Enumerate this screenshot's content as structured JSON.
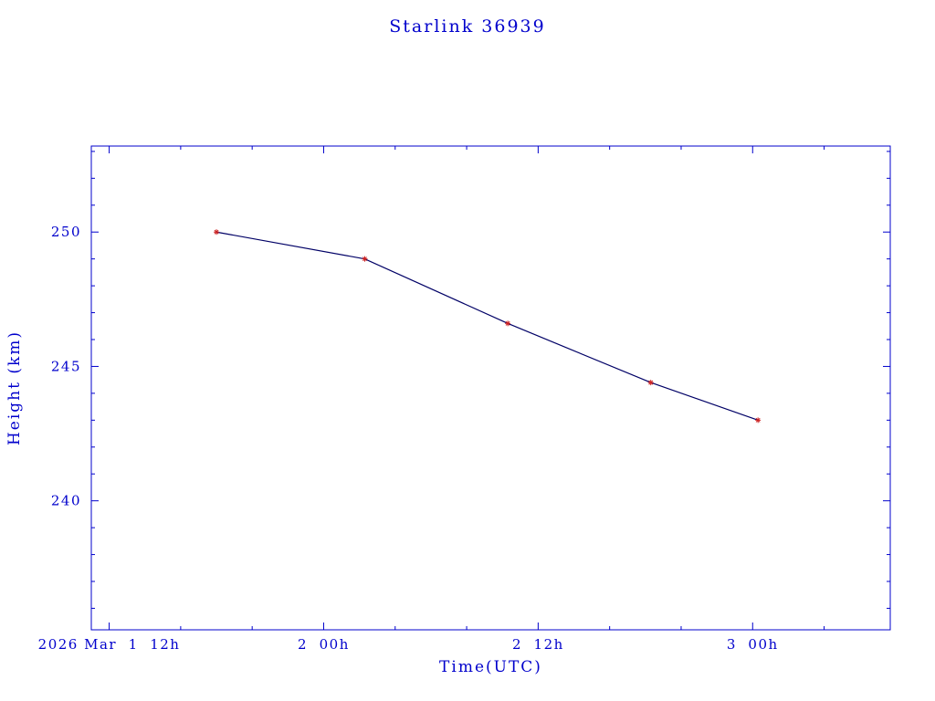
{
  "chart_data": {
    "type": "line",
    "title": "Starlink 36939",
    "xlabel": "Time(UTC)",
    "ylabel": "Height (km)",
    "x_unit": "hours since 2026 Mar 1 00:00 UTC",
    "xlim": [
      11,
      55.7
    ],
    "ylim": [
      235.2,
      253.2
    ],
    "x": [
      18.0,
      26.3,
      34.3,
      42.3,
      48.3
    ],
    "y": [
      250.0,
      249.0,
      246.6,
      244.4,
      243.0
    ],
    "series": [
      {
        "name": "Height (km)",
        "values": [
          250.0,
          249.0,
          246.6,
          244.4,
          243.0
        ]
      }
    ],
    "x_ticks": [
      {
        "value": 12,
        "label": "2026 Mar  1  12h"
      },
      {
        "value": 24,
        "label": "2  00h"
      },
      {
        "value": 36,
        "label": "2  12h"
      },
      {
        "value": 48,
        "label": "3  00h"
      }
    ],
    "x_minor_step": 4,
    "y_ticks": [
      {
        "value": 240,
        "label": "240"
      },
      {
        "value": 245,
        "label": "245"
      },
      {
        "value": 250,
        "label": "250"
      }
    ],
    "y_minor_step": 1,
    "grid": false,
    "legend": "none",
    "colors": {
      "background": "#ffffff",
      "text": "#0000cc",
      "axis": "#0000cc",
      "line": "#000066",
      "marker": "#cc2222"
    }
  }
}
